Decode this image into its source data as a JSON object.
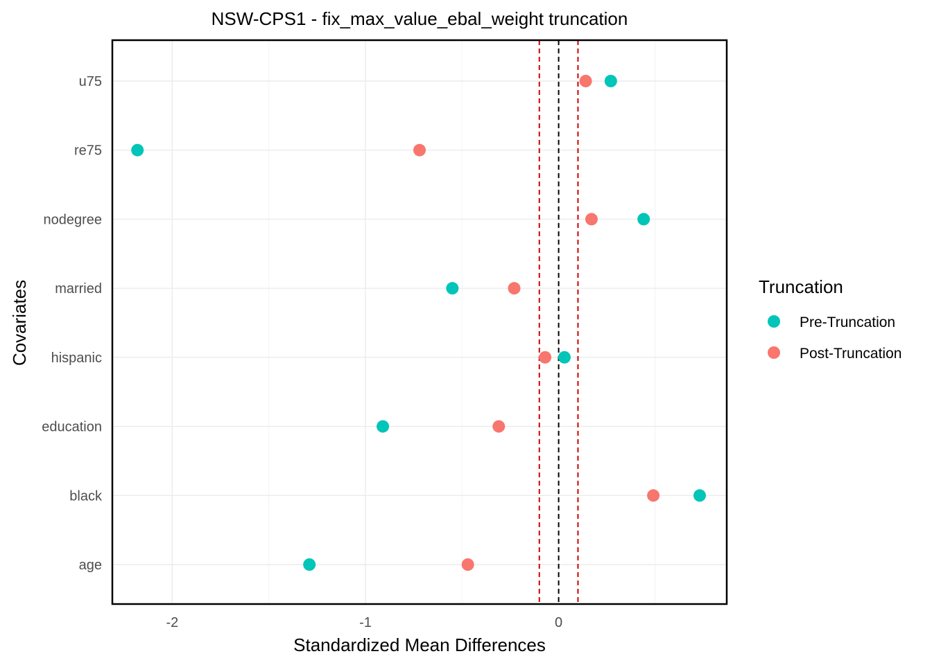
{
  "chart_data": {
    "type": "scatter",
    "title": "NSW-CPS1 - fix_max_value_ebal_weight truncation",
    "xlabel": "Standardized Mean Differences",
    "ylabel": "Covariates",
    "categories": [
      "age",
      "black",
      "education",
      "hispanic",
      "married",
      "nodegree",
      "re75",
      "u75"
    ],
    "xlim": [
      -2.31,
      0.87
    ],
    "x_ticks": [
      -2,
      -1,
      0
    ],
    "x_tick_labels": [
      "-2",
      "-1",
      "0"
    ],
    "grid": true,
    "legend_position": "right",
    "legend_title": "Truncation",
    "reference_lines": [
      {
        "x": 0,
        "color": "#000000",
        "style": "dashed"
      },
      {
        "x": -0.1,
        "color": "#CC0000",
        "style": "dashed"
      },
      {
        "x": 0.1,
        "color": "#CC0000",
        "style": "dashed"
      }
    ],
    "series": [
      {
        "name": "Pre-Truncation",
        "color": "#00C5B8",
        "values": [
          -1.29,
          0.73,
          -0.91,
          0.03,
          -0.55,
          0.44,
          -2.18,
          0.27
        ]
      },
      {
        "name": "Post-Truncation",
        "color": "#F8766D",
        "values": [
          -0.47,
          0.49,
          -0.31,
          -0.07,
          -0.23,
          0.17,
          -0.72,
          0.14
        ]
      }
    ]
  }
}
